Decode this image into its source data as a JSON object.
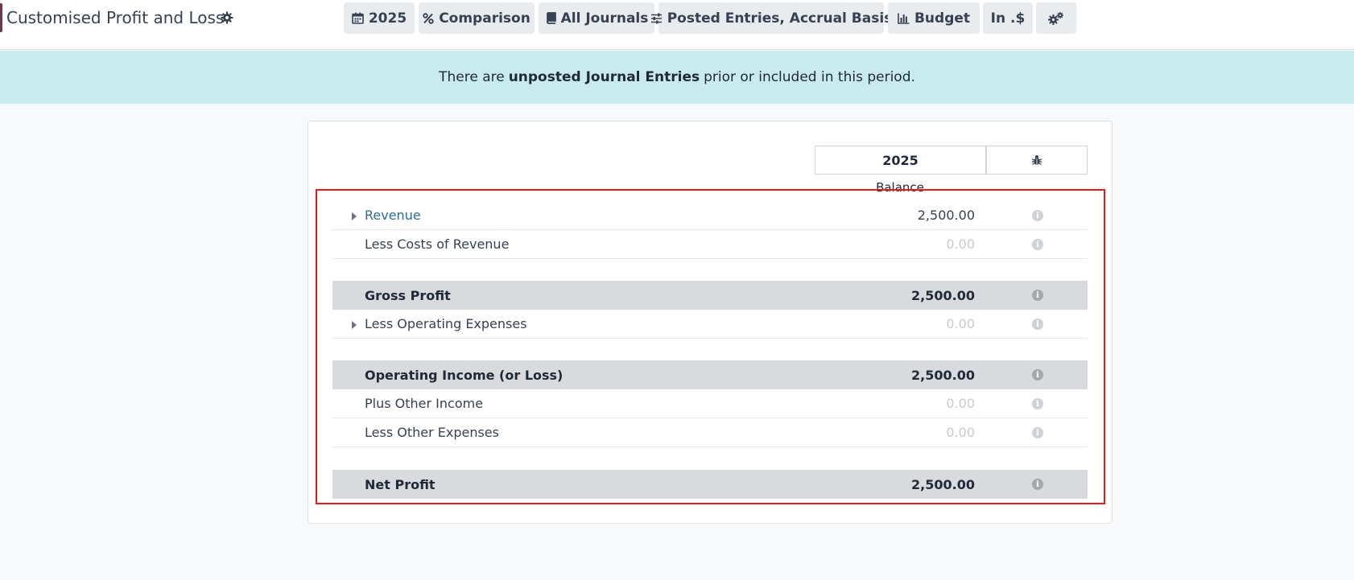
{
  "header": {
    "title": "Customised Profit and Loss",
    "buttons": [
      {
        "label": "2025",
        "icon": "calendar-icon"
      },
      {
        "label": "Comparison",
        "icon": "percent-icon"
      },
      {
        "label": "All Journals",
        "icon": "book-icon"
      },
      {
        "label": "Posted Entries, Accrual Basis",
        "icon": "sliders-icon"
      },
      {
        "label": "Budget",
        "icon": "bar-chart-icon"
      },
      {
        "label": "In .$",
        "icon": ""
      },
      {
        "label": "",
        "icon": "gears-icon"
      }
    ]
  },
  "banner": {
    "prefix": "There are",
    "emphasis": "unposted Journal Entries",
    "suffix": "prior or included in this period."
  },
  "report": {
    "column_header": "2025",
    "debug_icon": "bug-icon",
    "sub_header": "Balance",
    "rows": [
      {
        "label": "Revenue",
        "amount": "2,500.00",
        "expandable": true,
        "total": false
      },
      {
        "label": "Less Costs of Revenue",
        "amount": "0.00",
        "expandable": false,
        "total": false
      },
      {
        "label": "Gross Profit",
        "amount": "2,500.00",
        "expandable": false,
        "total": true
      },
      {
        "label": "Less Operating Expenses",
        "amount": "0.00",
        "expandable": true,
        "total": false
      },
      {
        "label": "Operating Income (or Loss)",
        "amount": "2,500.00",
        "expandable": false,
        "total": true
      },
      {
        "label": "Plus Other Income",
        "amount": "0.00",
        "expandable": false,
        "total": false
      },
      {
        "label": "Less Other Expenses",
        "amount": "0.00",
        "expandable": false,
        "total": false
      },
      {
        "label": "Net Profit",
        "amount": "2,500.00",
        "expandable": false,
        "total": true
      }
    ]
  },
  "colors": {
    "banner_bg": "#c9ebf0",
    "total_row_bg": "#d8dadd",
    "link": "#2f6b8f",
    "highlight": "#e01e1e"
  }
}
